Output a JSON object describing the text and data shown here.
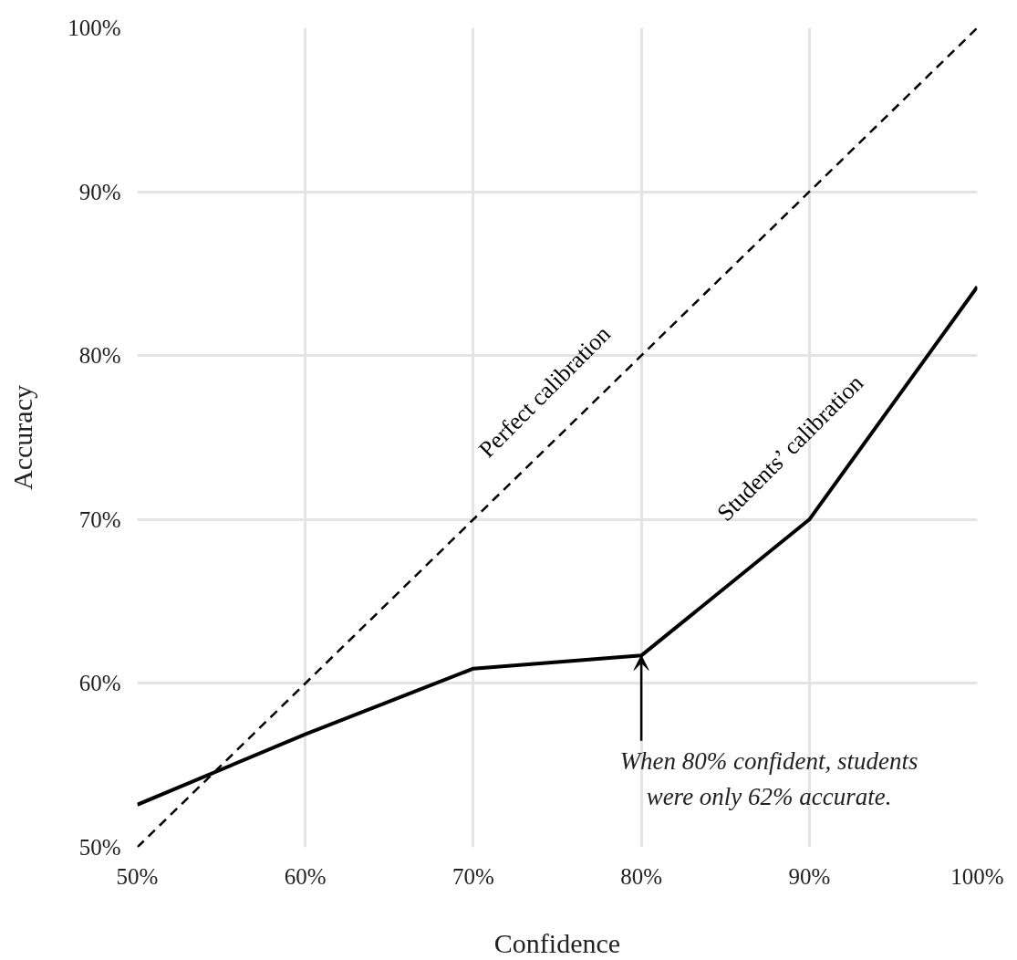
{
  "chart_data": {
    "type": "line",
    "xlabel": "Confidence",
    "ylabel": "Accuracy",
    "x": [
      50,
      60,
      70,
      80,
      90,
      100
    ],
    "series": [
      {
        "name": "Perfect calibration",
        "color": "#000000",
        "line_style": "dashed",
        "x": [
          50,
          100
        ],
        "values": [
          50,
          100
        ]
      },
      {
        "name": "Students’ calibration",
        "color": "#000000",
        "line_style": "solid",
        "values": [
          52.6,
          56.9,
          60.9,
          61.7,
          70,
          84.2
        ]
      }
    ],
    "xlim": [
      50,
      100
    ],
    "ylim": [
      50,
      100
    ],
    "xticks": [
      {
        "value": 50,
        "label": "50%"
      },
      {
        "value": 60,
        "label": "60%"
      },
      {
        "value": 70,
        "label": "70%"
      },
      {
        "value": 80,
        "label": "80%"
      },
      {
        "value": 90,
        "label": "90%"
      },
      {
        "value": 100,
        "label": "100%"
      }
    ],
    "yticks": [
      {
        "value": 50,
        "label": "50%"
      },
      {
        "value": 60,
        "label": "60%"
      },
      {
        "value": 70,
        "label": "70%"
      },
      {
        "value": 80,
        "label": "80%"
      },
      {
        "value": 90,
        "label": "90%"
      },
      {
        "value": 100,
        "label": "100%"
      }
    ],
    "grid": true,
    "marker": "none",
    "annotations": [
      {
        "text": "When 80% confident, students\nwere only 62% accurate.",
        "x": 80,
        "y": 61.7
      }
    ]
  }
}
